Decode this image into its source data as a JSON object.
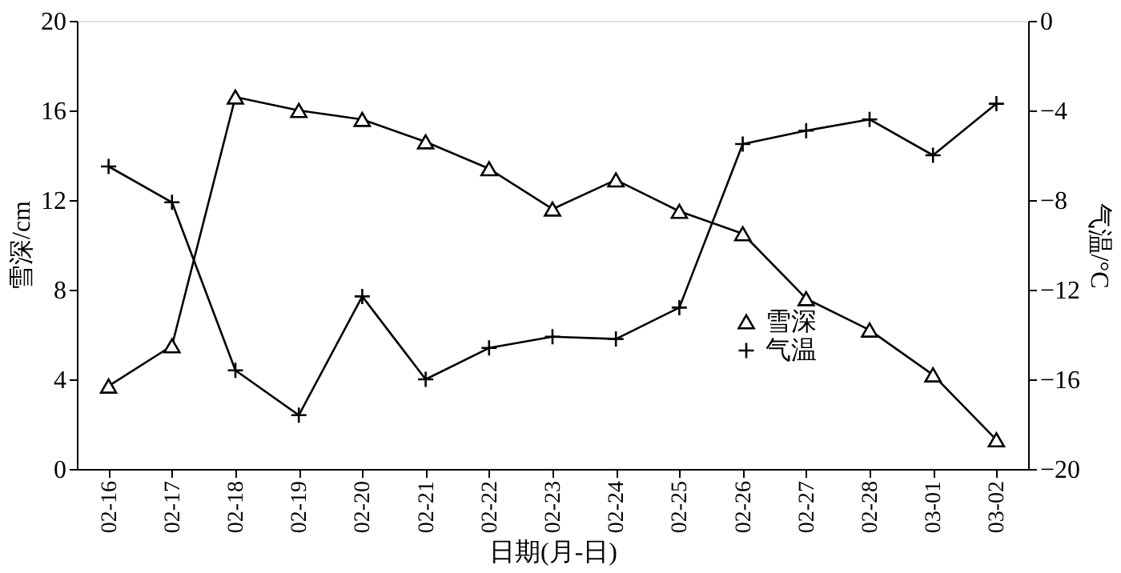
{
  "chart_data": {
    "type": "line",
    "xlabel": "日期(月-日)",
    "ylabel": "雪深/cm",
    "y2label": "气温/°C",
    "categories": [
      "02-16",
      "02-17",
      "02-18",
      "02-19",
      "02-20",
      "02-21",
      "02-22",
      "02-23",
      "02-24",
      "02-25",
      "02-26",
      "02-27",
      "02-28",
      "03-01",
      "03-02"
    ],
    "series": [
      {
        "name": "雪深",
        "color": "#000000",
        "marker": "triangle",
        "values": [
          3.7,
          5.5,
          16.6,
          16.0,
          15.6,
          14.6,
          13.4,
          11.6,
          12.9,
          11.5,
          10.5,
          7.6,
          6.2,
          4.2,
          1.3
        ]
      },
      {
        "name": "气温",
        "color": "#000000",
        "marker": "cross",
        "axis": "y2",
        "values": [
          -6.5,
          -8.1,
          -15.6,
          -17.6,
          -12.3,
          -16.0,
          -14.6,
          -14.1,
          -14.2,
          -12.8,
          -5.5,
          -4.9,
          -4.4,
          -6.0,
          -3.7
        ]
      }
    ],
    "ylim": [
      0,
      20
    ],
    "yticks": [
      0,
      4,
      8,
      12,
      16,
      20
    ],
    "y2lim": [
      -20,
      0
    ],
    "y2ticks": [
      -20,
      -16,
      -12,
      -8,
      -4,
      0
    ],
    "grid": false,
    "legend": "bottom right",
    "line_style": "solid"
  }
}
